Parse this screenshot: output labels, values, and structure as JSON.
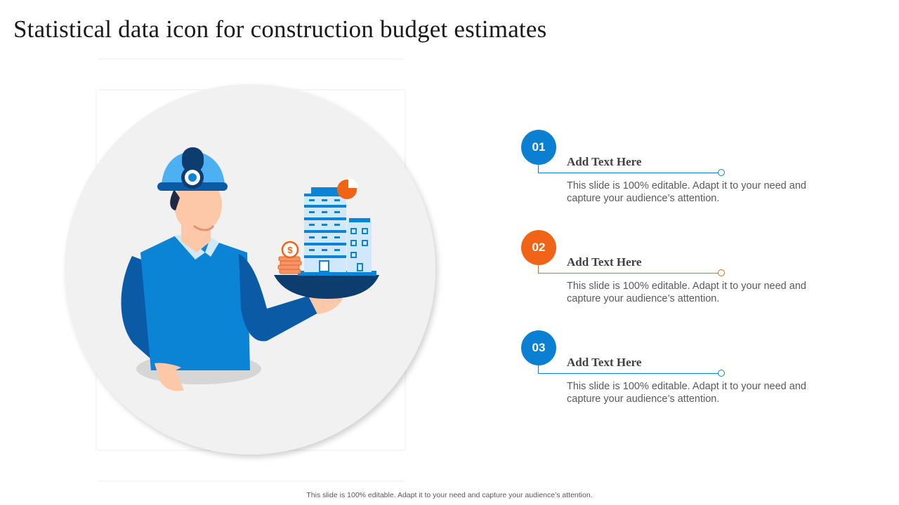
{
  "title": "Statistical data icon for construction budget estimates",
  "items": [
    {
      "number": "01",
      "heading": "Add Text Here",
      "text": "This slide is 100% editable. Adapt it to your need and capture your audience’s attention.",
      "color": "#0b80d2"
    },
    {
      "number": "02",
      "heading": "Add Text Here",
      "text": "This slide is 100% editable. Adapt it to your need and capture your audience’s attention.",
      "color": "#f06417"
    },
    {
      "number": "03",
      "heading": "Add Text Here",
      "text": "This slide is 100% editable. Adapt it to your need and capture your audience’s attention.",
      "color": "#0b80d2"
    }
  ],
  "footer": "This slide is 100% editable. Adapt it to your need and capture your audience’s attention.",
  "illustration": {
    "icons": [
      "construction-worker-icon",
      "building-icon",
      "pie-chart-icon",
      "dollar-coin-icon"
    ]
  }
}
